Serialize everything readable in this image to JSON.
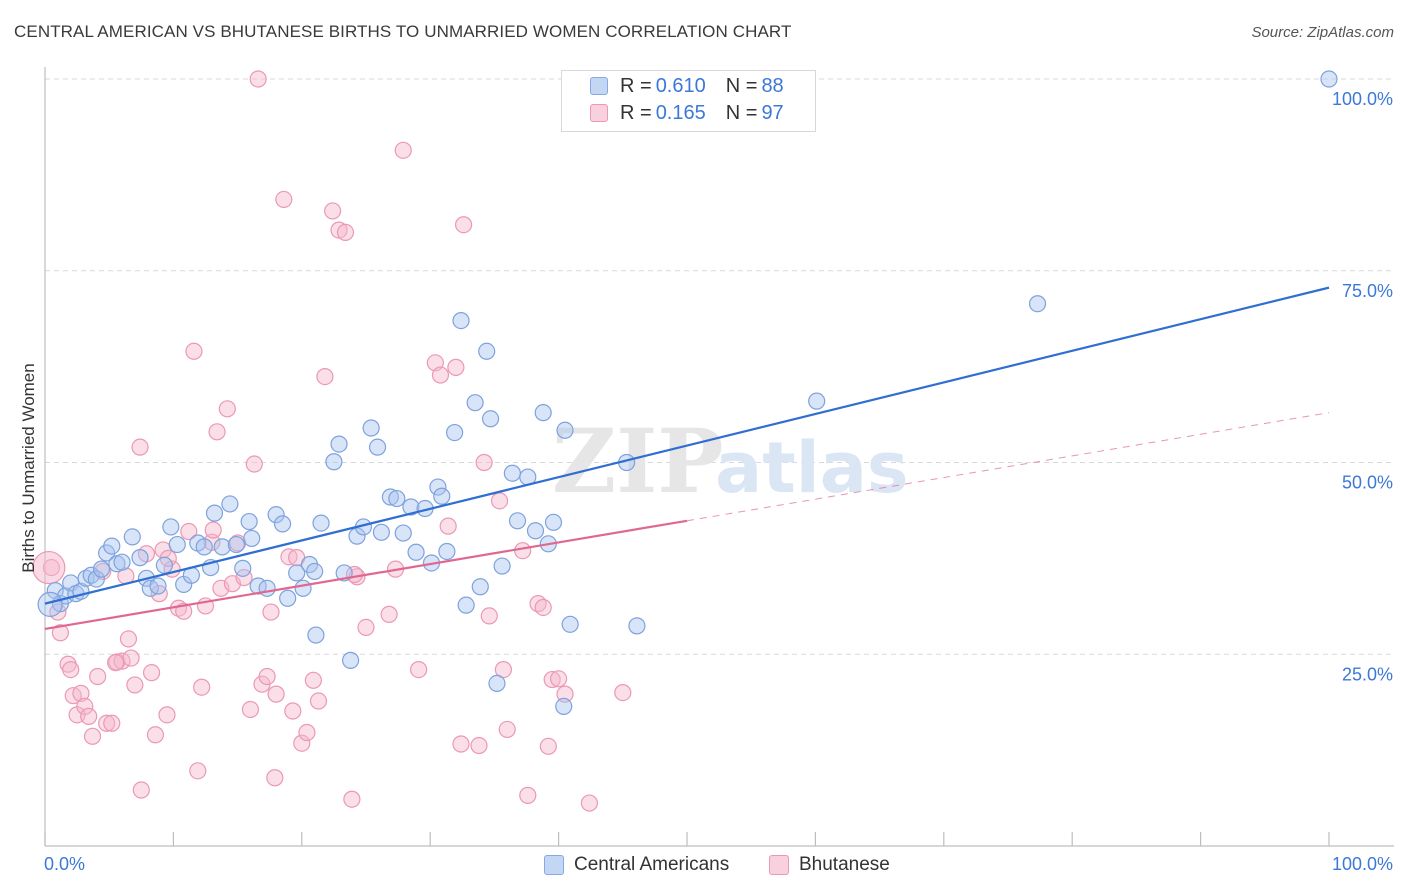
{
  "title": "CENTRAL AMERICAN VS BHUTANESE BIRTHS TO UNMARRIED WOMEN CORRELATION CHART",
  "source": "Source: ZipAtlas.com",
  "watermark": {
    "zip": "ZIP",
    "atlas": "atlas"
  },
  "legend_top": {
    "rows": [
      {
        "r_label": "R = ",
        "r_value": "0.610",
        "n_label": "N = ",
        "n_value": "88",
        "color": "#a9c4ef"
      },
      {
        "r_label": "R = ",
        "r_value": "0.165",
        "n_label": "N = ",
        "n_value": "97",
        "color": "#f5b8cb"
      }
    ]
  },
  "legend_bottom": {
    "series1": "Central Americans",
    "series2": "Bhutanese"
  },
  "colors": {
    "blue_fill": "#a9c4ef",
    "blue_line": "#2f6fd1",
    "pink_fill": "#f5b8cb",
    "pink_line": "#e06890",
    "grid": "#d9d9d9",
    "tick_label": "#3c78d8"
  },
  "chart_data": {
    "type": "scatter",
    "title": "CENTRAL AMERICAN VS BHUTANESE BIRTHS TO UNMARRIED WOMEN CORRELATION CHART",
    "xlabel": "",
    "ylabel": "Births to Unmarried Women",
    "xlim": [
      0,
      100
    ],
    "ylim": [
      0,
      100
    ],
    "x_tick_labels": [
      "0.0%",
      "100.0%"
    ],
    "y_tick_labels": [
      "25.0%",
      "50.0%",
      "75.0%",
      "100.0%"
    ],
    "y_ticks": [
      25,
      50,
      75,
      100
    ],
    "grid": true,
    "legend_position": "top-center",
    "series": [
      {
        "name": "Central Americans",
        "R": 0.61,
        "N": 88,
        "trend": {
          "x": [
            0,
            100
          ],
          "y": [
            31.6,
            72.8
          ],
          "style": "solid"
        },
        "points": [
          [
            0.8,
            33.3
          ],
          [
            1.2,
            31.6
          ],
          [
            1.6,
            32.6
          ],
          [
            2.0,
            34.3
          ],
          [
            2.4,
            32.9
          ],
          [
            2.8,
            33.2
          ],
          [
            3.2,
            34.9
          ],
          [
            3.6,
            35.3
          ],
          [
            4.0,
            34.8
          ],
          [
            4.4,
            36.1
          ],
          [
            4.8,
            38.2
          ],
          [
            5.2,
            39.1
          ],
          [
            5.6,
            36.8
          ],
          [
            6.0,
            37.0
          ],
          [
            6.8,
            40.3
          ],
          [
            7.4,
            37.6
          ],
          [
            7.9,
            34.9
          ],
          [
            8.2,
            33.6
          ],
          [
            8.8,
            33.9
          ],
          [
            9.3,
            36.6
          ],
          [
            9.8,
            41.6
          ],
          [
            10.3,
            39.3
          ],
          [
            10.8,
            34.1
          ],
          [
            11.4,
            35.3
          ],
          [
            11.9,
            39.5
          ],
          [
            12.4,
            39.0
          ],
          [
            12.9,
            36.3
          ],
          [
            13.2,
            43.4
          ],
          [
            13.8,
            39.0
          ],
          [
            14.4,
            44.6
          ],
          [
            14.9,
            39.3
          ],
          [
            15.4,
            36.2
          ],
          [
            15.9,
            42.3
          ],
          [
            16.1,
            40.1
          ],
          [
            16.6,
            33.9
          ],
          [
            17.3,
            33.6
          ],
          [
            18.0,
            43.2
          ],
          [
            18.5,
            42.0
          ],
          [
            18.9,
            32.3
          ],
          [
            19.6,
            35.6
          ],
          [
            20.1,
            33.6
          ],
          [
            20.6,
            36.7
          ],
          [
            21.1,
            27.5
          ],
          [
            21.5,
            42.1
          ],
          [
            22.5,
            50.1
          ],
          [
            22.9,
            52.4
          ],
          [
            23.3,
            35.6
          ],
          [
            23.8,
            24.2
          ],
          [
            24.3,
            40.4
          ],
          [
            24.8,
            41.6
          ],
          [
            25.4,
            54.5
          ],
          [
            25.9,
            52.0
          ],
          [
            26.2,
            40.9
          ],
          [
            26.9,
            45.5
          ],
          [
            27.4,
            45.3
          ],
          [
            27.9,
            40.8
          ],
          [
            28.5,
            44.2
          ],
          [
            28.9,
            38.3
          ],
          [
            29.6,
            44.0
          ],
          [
            30.1,
            36.9
          ],
          [
            30.6,
            46.8
          ],
          [
            30.9,
            45.6
          ],
          [
            31.3,
            38.4
          ],
          [
            31.9,
            53.9
          ],
          [
            32.4,
            68.5
          ],
          [
            32.8,
            31.4
          ],
          [
            33.5,
            57.8
          ],
          [
            33.9,
            33.8
          ],
          [
            34.4,
            64.5
          ],
          [
            34.7,
            55.7
          ],
          [
            35.2,
            21.2
          ],
          [
            35.6,
            36.5
          ],
          [
            36.4,
            48.6
          ],
          [
            36.8,
            42.4
          ],
          [
            37.6,
            48.1
          ],
          [
            38.2,
            41.1
          ],
          [
            38.8,
            56.5
          ],
          [
            39.2,
            39.4
          ],
          [
            39.6,
            42.2
          ],
          [
            40.4,
            18.2
          ],
          [
            40.5,
            54.2
          ],
          [
            40.9,
            28.9
          ],
          [
            45.3,
            50.0
          ],
          [
            46.1,
            28.7
          ],
          [
            60.1,
            58.0
          ],
          [
            77.3,
            70.7
          ],
          [
            100,
            100
          ],
          [
            21.0,
            35.8
          ]
        ]
      },
      {
        "name": "Bhutanese",
        "R": 0.165,
        "N": 97,
        "trend": {
          "x": [
            0,
            100
          ],
          "y": [
            28.3,
            56.5
          ],
          "solid_until_x": 50,
          "style": "solid then dashed"
        },
        "points": [
          [
            0.5,
            36.3
          ],
          [
            1.0,
            30.5
          ],
          [
            1.2,
            27.8
          ],
          [
            1.8,
            23.7
          ],
          [
            2.0,
            23.0
          ],
          [
            2.2,
            19.6
          ],
          [
            2.5,
            17.1
          ],
          [
            2.8,
            19.9
          ],
          [
            3.1,
            18.2
          ],
          [
            3.4,
            16.9
          ],
          [
            3.7,
            14.3
          ],
          [
            4.1,
            22.1
          ],
          [
            4.5,
            35.8
          ],
          [
            4.8,
            16.0
          ],
          [
            5.2,
            16.0
          ],
          [
            5.6,
            24.0
          ],
          [
            6.0,
            24.1
          ],
          [
            6.3,
            35.2
          ],
          [
            6.5,
            27.0
          ],
          [
            6.7,
            24.5
          ],
          [
            7.0,
            21.0
          ],
          [
            7.4,
            52.0
          ],
          [
            7.5,
            7.3
          ],
          [
            7.9,
            38.1
          ],
          [
            8.3,
            22.6
          ],
          [
            8.6,
            14.5
          ],
          [
            8.9,
            32.9
          ],
          [
            9.2,
            38.6
          ],
          [
            9.5,
            17.1
          ],
          [
            9.9,
            36.1
          ],
          [
            10.4,
            31.0
          ],
          [
            10.8,
            30.6
          ],
          [
            11.2,
            41.0
          ],
          [
            11.6,
            64.5
          ],
          [
            11.9,
            9.8
          ],
          [
            12.2,
            20.7
          ],
          [
            12.5,
            31.3
          ],
          [
            13.0,
            39.6
          ],
          [
            13.4,
            54.0
          ],
          [
            13.7,
            33.6
          ],
          [
            14.2,
            57.0
          ],
          [
            14.6,
            34.2
          ],
          [
            15.0,
            39.5
          ],
          [
            15.5,
            35.0
          ],
          [
            16.0,
            17.8
          ],
          [
            16.3,
            49.8
          ],
          [
            16.6,
            100.0
          ],
          [
            16.9,
            21.1
          ],
          [
            17.3,
            22.1
          ],
          [
            17.6,
            30.5
          ],
          [
            17.9,
            8.9
          ],
          [
            18.0,
            19.8
          ],
          [
            18.6,
            84.3
          ],
          [
            19.0,
            37.7
          ],
          [
            19.3,
            17.6
          ],
          [
            19.6,
            37.6
          ],
          [
            20.0,
            13.4
          ],
          [
            20.4,
            14.8
          ],
          [
            20.9,
            21.6
          ],
          [
            21.3,
            18.9
          ],
          [
            21.8,
            61.2
          ],
          [
            22.4,
            82.8
          ],
          [
            22.9,
            80.3
          ],
          [
            23.4,
            80.0
          ],
          [
            23.9,
            6.1
          ],
          [
            24.3,
            35.1
          ],
          [
            25.0,
            28.5
          ],
          [
            26.8,
            30.2
          ],
          [
            27.3,
            36.1
          ],
          [
            27.9,
            90.7
          ],
          [
            29.1,
            23.0
          ],
          [
            30.4,
            63.0
          ],
          [
            30.8,
            61.4
          ],
          [
            31.4,
            41.7
          ],
          [
            32.0,
            62.4
          ],
          [
            32.4,
            13.3
          ],
          [
            32.6,
            81.0
          ],
          [
            33.8,
            13.1
          ],
          [
            34.2,
            50.0
          ],
          [
            34.6,
            30.0
          ],
          [
            35.4,
            45.0
          ],
          [
            35.7,
            23.0
          ],
          [
            36.0,
            15.2
          ],
          [
            37.2,
            38.5
          ],
          [
            37.6,
            6.6
          ],
          [
            38.4,
            31.6
          ],
          [
            38.8,
            31.1
          ],
          [
            39.2,
            13.0
          ],
          [
            39.5,
            21.7
          ],
          [
            40.0,
            21.8
          ],
          [
            40.5,
            19.8
          ],
          [
            42.4,
            5.6
          ],
          [
            45.0,
            20.0
          ],
          [
            24.1,
            35.4
          ],
          [
            13.1,
            41.2
          ],
          [
            9.6,
            37.5
          ],
          [
            5.5,
            23.9
          ]
        ]
      }
    ]
  }
}
